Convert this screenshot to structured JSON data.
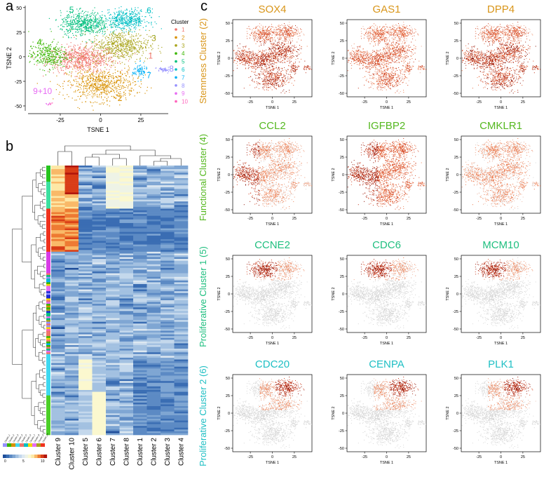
{
  "panels": {
    "a": "a",
    "b": "b",
    "c": "c"
  },
  "colors": {
    "c1": "#f0736b",
    "c2": "#d89000",
    "c3": "#a8a41a",
    "c4": "#39b600",
    "c5": "#00bf7d",
    "c6": "#00bfc4",
    "c7": "#00b0f6",
    "c8": "#9590ff",
    "c9": "#e76bf3",
    "c10": "#ff62bc",
    "stemness": "#d9961a",
    "functional": "#55b820",
    "prolif1": "#1fbf7f",
    "prolif2": "#1fbfc4",
    "feature_low": "#d9d9d9",
    "feature_high": "#8b0a00"
  },
  "chart_data": [
    {
      "id": "a",
      "type": "scatter",
      "title": "",
      "xlabel": "TSNE 1",
      "ylabel": "TSNE 2",
      "xticks": [
        "-25",
        "0",
        "25"
      ],
      "yticks": [
        "-50",
        "-25",
        "0",
        "25",
        "50"
      ],
      "xlim": [
        -45,
        42
      ],
      "ylim": [
        -55,
        52
      ],
      "legend": {
        "title": "Cluster",
        "placement": "right",
        "entries": [
          "1",
          "2",
          "3",
          "4",
          "5",
          "6",
          "7",
          "8",
          "9",
          "10"
        ]
      },
      "cluster_labels": [
        {
          "text": "5",
          "x": -18,
          "y": 45
        },
        {
          "text": "6",
          "x": 30,
          "y": 44
        },
        {
          "text": "3",
          "x": 33,
          "y": 16
        },
        {
          "text": "4",
          "x": -38,
          "y": 12
        },
        {
          "text": "1",
          "x": 31,
          "y": -2
        },
        {
          "text": "7",
          "x": 30,
          "y": -22
        },
        {
          "text": "8",
          "x": 47,
          "y": -15
        },
        {
          "text": "2",
          "x": 12,
          "y": -45
        },
        {
          "text": "9+10",
          "x": -36,
          "y": -38
        }
      ],
      "series": [
        {
          "name": "1",
          "center": [
            -12,
            -2
          ],
          "spread": [
            14,
            9
          ],
          "count": 700
        },
        {
          "name": "2",
          "center": [
            0,
            -28
          ],
          "spread": [
            14,
            11
          ],
          "count": 700
        },
        {
          "name": "3",
          "center": [
            12,
            12
          ],
          "spread": [
            12,
            10
          ],
          "count": 600
        },
        {
          "name": "4",
          "center": [
            -33,
            2
          ],
          "spread": [
            8,
            9
          ],
          "count": 350
        },
        {
          "name": "5",
          "center": [
            -10,
            34
          ],
          "spread": [
            10,
            8
          ],
          "count": 550
        },
        {
          "name": "6",
          "center": [
            16,
            38
          ],
          "spread": [
            9,
            7
          ],
          "count": 450
        },
        {
          "name": "7",
          "center": [
            24,
            -14
          ],
          "spread": [
            3,
            5
          ],
          "count": 90
        },
        {
          "name": "8",
          "center": [
            39,
            -13
          ],
          "spread": [
            3,
            2
          ],
          "count": 50
        },
        {
          "name": "9",
          "center": [
            -33,
            -48
          ],
          "spread": [
            1,
            1
          ],
          "count": 8
        },
        {
          "name": "10",
          "center": [
            -31,
            -47
          ],
          "spread": [
            1,
            1
          ],
          "count": 6
        }
      ]
    },
    {
      "id": "b",
      "type": "heatmap",
      "columns": [
        "Cluster 9",
        "Cluster 10",
        "Cluster 5",
        "Cluster 6",
        "Cluster 7",
        "Cluster 8",
        "Cluster 1",
        "Cluster 2",
        "Cluster 3",
        "Cluster 4"
      ],
      "row_count": 150,
      "row_annotation_clusters": [
        "Cluster_1",
        "Cluster_2",
        "Cluster_3",
        "Cluster_4",
        "Cluster_5",
        "Cluster_6",
        "Cluster_7",
        "Cluster_8",
        "Cluster_9",
        "Cluster_10"
      ],
      "color_key_ticks": [
        "0",
        "5",
        "10"
      ],
      "blocks": [
        {
          "rows": [
            0,
            24
          ],
          "high_cols": [
            0,
            1
          ],
          "level": "warm_top"
        },
        {
          "rows": [
            24,
            48
          ],
          "high_cols": [
            0,
            1
          ],
          "level": "warm_dark"
        },
        {
          "rows": [
            48,
            140
          ],
          "high_cols": [],
          "level": "mid"
        },
        {
          "rows": [
            105,
            150
          ],
          "high_cols": [
            2,
            3
          ],
          "level": "cool_block"
        }
      ]
    },
    {
      "id": "c",
      "type": "scatter",
      "xlabel": "TSNE 1",
      "ylabel": "TSNE 2",
      "xticks": [
        "-25",
        "0",
        "25"
      ],
      "yticks": [
        "-50",
        "-25",
        "0",
        "25",
        "50"
      ],
      "rows": [
        {
          "label": "Stemness Cluster (2)",
          "color": "stemness",
          "genes": [
            {
              "name": "SOX4",
              "pattern": "broad"
            },
            {
              "name": "GAS1",
              "pattern": "broad_low"
            },
            {
              "name": "DPP4",
              "pattern": "broad"
            }
          ]
        },
        {
          "label": "Functional Cluster (4)",
          "color": "functional",
          "genes": [
            {
              "name": "CCL2",
              "pattern": "left"
            },
            {
              "name": "IGFBP2",
              "pattern": "broad_left"
            },
            {
              "name": "CMKLR1",
              "pattern": "sparse"
            }
          ]
        },
        {
          "label": "Proliferative Cluster 1 (5)",
          "color": "prolif1",
          "genes": [
            {
              "name": "CCNE2",
              "pattern": "top_left"
            },
            {
              "name": "CDC6",
              "pattern": "top_left"
            },
            {
              "name": "MCM10",
              "pattern": "top_left"
            }
          ]
        },
        {
          "label": "Proliferative Cluster 2 (6)",
          "color": "prolif2",
          "genes": [
            {
              "name": "CDC20",
              "pattern": "top_right"
            },
            {
              "name": "CENPA",
              "pattern": "top_right"
            },
            {
              "name": "PLK1",
              "pattern": "top_right"
            }
          ]
        }
      ]
    }
  ]
}
